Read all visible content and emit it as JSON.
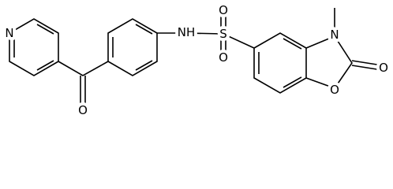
{
  "atoms": [
    {
      "label": "N"
    },
    {
      "label": "O"
    },
    {
      "label": "NH"
    },
    {
      "label": "S"
    },
    {
      "label": "O"
    },
    {
      "label": "O"
    },
    {
      "label": "N"
    },
    {
      "label": "O"
    },
    {
      "label": "O"
    }
  ]
}
